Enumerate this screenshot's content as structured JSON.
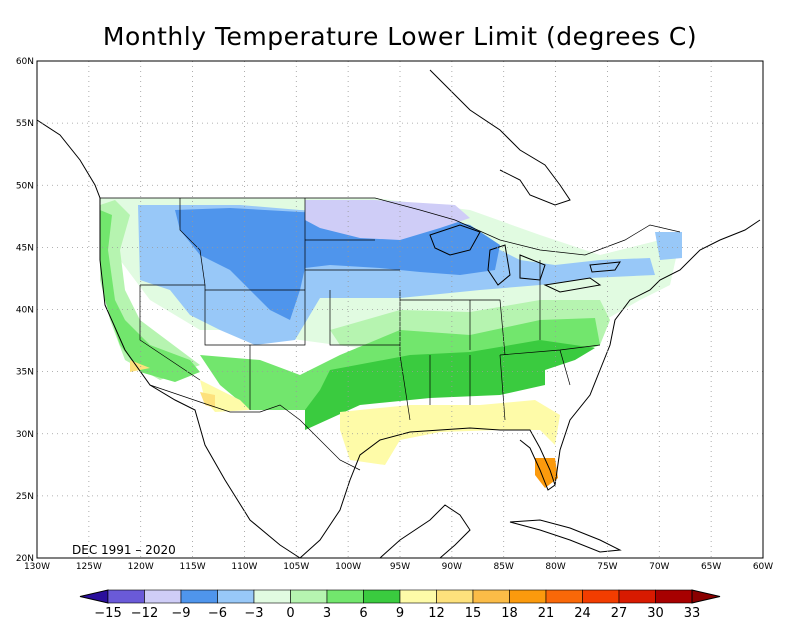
{
  "title": "Monthly Temperature Lower Limit (degrees C)",
  "period_label": "DEC 1991 – 2020",
  "map": {
    "lon_range": [
      -130,
      -60
    ],
    "lat_range": [
      20,
      60
    ],
    "lon_ticks": [
      "130W",
      "125W",
      "120W",
      "115W",
      "110W",
      "105W",
      "100W",
      "95W",
      "90W",
      "85W",
      "80W",
      "75W",
      "70W",
      "65W",
      "60W"
    ],
    "lat_ticks": [
      "20N",
      "25N",
      "30N",
      "35N",
      "40N",
      "45N",
      "50N",
      "55N",
      "60N"
    ],
    "gridlines": "dotted"
  },
  "colorbar": {
    "labels": [
      "−15",
      "−12",
      "−9",
      "−6",
      "−3",
      "0",
      "3",
      "6",
      "9",
      "12",
      "15",
      "18",
      "21",
      "24",
      "27",
      "30",
      "33"
    ],
    "colors": [
      "#2a0f9c",
      "#6a5ad8",
      "#cfcdf7",
      "#4f95ec",
      "#98c8f8",
      "#e1fbe1",
      "#b6f4b0",
      "#72e66d",
      "#3acb3f",
      "#fefba8",
      "#fde17c",
      "#fbbc47",
      "#fb9a0d",
      "#f96808",
      "#f23d00",
      "#d81a00",
      "#a70000",
      "#8a0000"
    ]
  },
  "zones": [
    {
      "id": "zone-le-minus9",
      "value": "-9"
    },
    {
      "id": "zone-minus6",
      "value": "-6"
    },
    {
      "id": "zone-minus3",
      "value": "-3"
    },
    {
      "id": "zone-0",
      "value": "0"
    },
    {
      "id": "zone-3",
      "value": "3"
    },
    {
      "id": "zone-6",
      "value": "6"
    },
    {
      "id": "zone-9",
      "value": "9"
    },
    {
      "id": "zone-12",
      "value": "12"
    },
    {
      "id": "zone-15",
      "value": "15"
    },
    {
      "id": "zone-21",
      "value": "21"
    }
  ]
}
